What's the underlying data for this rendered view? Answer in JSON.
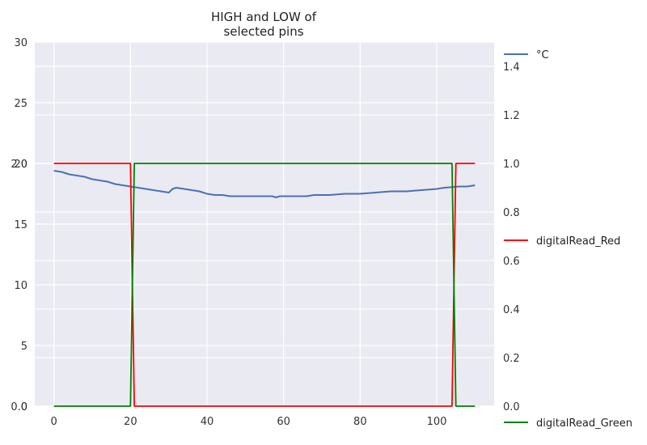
{
  "chart_data": {
    "type": "line",
    "title": [
      "HIGH and LOW of",
      "selected pins"
    ],
    "xlim": [
      -5,
      115
    ],
    "x_ticks": [
      0,
      20,
      40,
      60,
      80,
      100
    ],
    "left_axis": {
      "ylim": [
        0,
        30
      ],
      "ticks": [
        0,
        5,
        10,
        15,
        20,
        25,
        30
      ],
      "tick_labels": [
        "0",
        "5",
        "10",
        "15",
        "20",
        "25",
        "30"
      ]
    },
    "left_axis_overlay": {
      "ylim": [
        0,
        2
      ],
      "ticks": [
        0,
        2
      ],
      "tick_labels": [
        "0.0",
        "2.0"
      ]
    },
    "right_axis": {
      "ylim": [
        0,
        1.5
      ],
      "ticks": [
        0,
        0.2,
        0.4,
        0.6,
        0.8,
        1.0,
        1.2,
        1.4
      ],
      "tick_labels": [
        "0.0",
        "0.2",
        "0.4",
        "0.6",
        "0.8",
        "1.0",
        "1.2",
        "1.4"
      ]
    },
    "grid": true,
    "series": [
      {
        "name": "°C",
        "axis": "left",
        "color": "#4c72b0",
        "points": [
          [
            0,
            19.4
          ],
          [
            2,
            19.3
          ],
          [
            4,
            19.1
          ],
          [
            6,
            19.0
          ],
          [
            8,
            18.9
          ],
          [
            10,
            18.7
          ],
          [
            12,
            18.6
          ],
          [
            14,
            18.5
          ],
          [
            16,
            18.3
          ],
          [
            18,
            18.2
          ],
          [
            20,
            18.1
          ],
          [
            22,
            18.0
          ],
          [
            24,
            17.9
          ],
          [
            26,
            17.8
          ],
          [
            28,
            17.7
          ],
          [
            30,
            17.6
          ],
          [
            31,
            17.9
          ],
          [
            32,
            18.0
          ],
          [
            34,
            17.9
          ],
          [
            36,
            17.8
          ],
          [
            38,
            17.7
          ],
          [
            40,
            17.5
          ],
          [
            42,
            17.4
          ],
          [
            44,
            17.4
          ],
          [
            46,
            17.3
          ],
          [
            50,
            17.3
          ],
          [
            55,
            17.3
          ],
          [
            57,
            17.3
          ],
          [
            58,
            17.2
          ],
          [
            59,
            17.3
          ],
          [
            62,
            17.3
          ],
          [
            66,
            17.3
          ],
          [
            68,
            17.4
          ],
          [
            72,
            17.4
          ],
          [
            76,
            17.5
          ],
          [
            80,
            17.5
          ],
          [
            84,
            17.6
          ],
          [
            88,
            17.7
          ],
          [
            92,
            17.7
          ],
          [
            96,
            17.8
          ],
          [
            100,
            17.9
          ],
          [
            102,
            18.0
          ],
          [
            106,
            18.1
          ],
          [
            108,
            18.1
          ],
          [
            110,
            18.2
          ]
        ]
      },
      {
        "name": "digitalRead_Red",
        "axis": "right",
        "color": "#ff0000",
        "points": [
          [
            0,
            1
          ],
          [
            20,
            1
          ],
          [
            21,
            0
          ],
          [
            104,
            0
          ],
          [
            105,
            1
          ],
          [
            110,
            1
          ]
        ]
      },
      {
        "name": "digitalRead_Green",
        "axis": "right",
        "color": "#008000",
        "points": [
          [
            0,
            0
          ],
          [
            20,
            0
          ],
          [
            21,
            1
          ],
          [
            104,
            1
          ],
          [
            105,
            0
          ],
          [
            110,
            0
          ]
        ]
      }
    ],
    "legend": [
      {
        "label": "°C",
        "color": "#4c72b0",
        "placement": "top-right"
      },
      {
        "label": "digitalRead_Red",
        "color": "#ff0000",
        "placement": "right"
      },
      {
        "label": "digitalRead_Green",
        "color": "#008000",
        "placement": "bottom-right"
      }
    ]
  }
}
